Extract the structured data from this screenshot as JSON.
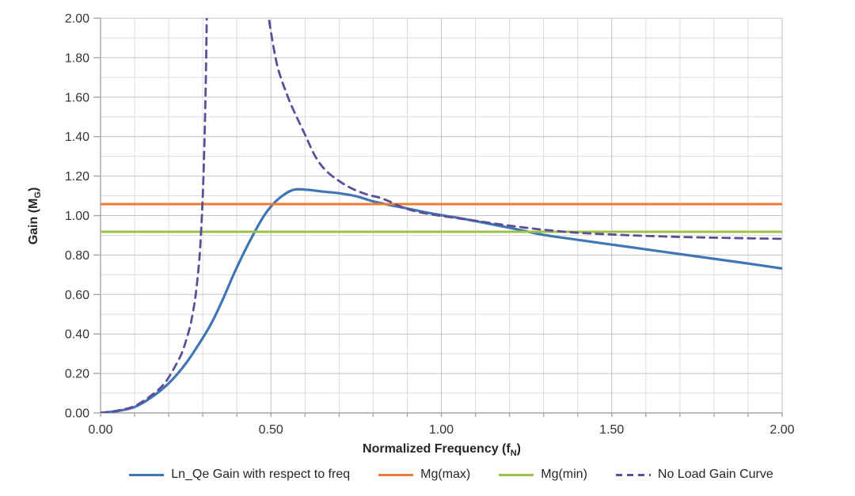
{
  "chart_data": {
    "type": "line",
    "title": "",
    "xlabel_parts": {
      "pre": "Normalized Frequency (f",
      "sub": "N",
      "post": ")"
    },
    "ylabel_parts": {
      "pre": "Gain (M",
      "sub": "G",
      "post": ")"
    },
    "xlim": [
      0,
      2
    ],
    "ylim": [
      0,
      2
    ],
    "x_tick_step": 0.5,
    "y_tick_step": 0.2,
    "minor_grid_step": 0.1,
    "grid": true,
    "legend_position": "bottom",
    "x_tick_labels": [
      "0.00",
      "0.50",
      "1.00",
      "1.50",
      "2.00"
    ],
    "y_tick_labels": [
      "0.00",
      "0.20",
      "0.40",
      "0.60",
      "0.80",
      "1.00",
      "1.20",
      "1.40",
      "1.60",
      "1.80",
      "2.00"
    ],
    "style": {
      "grid_minor_color": "#dcdcdc",
      "grid_major_color": "#c2c2c2",
      "axis_color": "#a6a6a6",
      "tick_label_color": "#333333",
      "background": "#ffffff"
    },
    "series": [
      {
        "name": "Ln_Qe Gain with respect to freq",
        "color": "#4076B4",
        "style": "solid",
        "width": 3.2,
        "peak": {
          "x": 0.57,
          "y": 1.13
        },
        "segments": [
          [
            [
              0,
              0
            ],
            [
              0.05,
              0.01
            ],
            [
              0.1,
              0.03
            ],
            [
              0.15,
              0.08
            ],
            [
              0.2,
              0.15
            ],
            [
              0.25,
              0.25
            ],
            [
              0.3,
              0.38
            ],
            [
              0.33,
              0.47
            ],
            [
              0.36,
              0.58
            ],
            [
              0.39,
              0.7
            ],
            [
              0.42,
              0.81
            ],
            [
              0.45,
              0.91
            ],
            [
              0.48,
              1.0
            ],
            [
              0.51,
              1.065
            ],
            [
              0.54,
              1.108
            ],
            [
              0.57,
              1.132
            ],
            [
              0.61,
              1.13
            ],
            [
              0.65,
              1.122
            ],
            [
              0.7,
              1.113
            ],
            [
              0.75,
              1.098
            ],
            [
              0.8,
              1.072
            ],
            [
              0.85,
              1.053
            ],
            [
              0.9,
              1.036
            ],
            [
              0.95,
              1.018
            ],
            [
              1.0,
              1.002
            ],
            [
              1.05,
              0.988
            ],
            [
              1.1,
              0.972
            ],
            [
              1.15,
              0.955
            ],
            [
              1.2,
              0.938
            ],
            [
              1.25,
              0.92
            ],
            [
              1.3,
              0.902
            ],
            [
              1.4,
              0.877
            ],
            [
              1.5,
              0.853
            ],
            [
              1.6,
              0.829
            ],
            [
              1.7,
              0.805
            ],
            [
              1.8,
              0.781
            ],
            [
              1.9,
              0.757
            ],
            [
              2.0,
              0.732
            ]
          ]
        ]
      },
      {
        "name": "Mg(max)",
        "color": "#ED7D31",
        "style": "solid",
        "width": 3,
        "value": 1.06,
        "segments": [
          [
            [
              0,
              1.058
            ],
            [
              2,
              1.058
            ]
          ]
        ]
      },
      {
        "name": "Mg(min)",
        "color": "#9BC348",
        "style": "solid",
        "width": 3,
        "value": 0.92,
        "segments": [
          [
            [
              0,
              0.918
            ],
            [
              2,
              0.918
            ]
          ]
        ]
      },
      {
        "name": "No Load Gain Curve",
        "color": "#5F4E96",
        "style": "dashed",
        "width": 2.8,
        "asymptote_x": 0.31,
        "segments": [
          [
            [
              0,
              0
            ],
            [
              0.05,
              0.012
            ],
            [
              0.1,
              0.035
            ],
            [
              0.15,
              0.09
            ],
            [
              0.18,
              0.135
            ],
            [
              0.2,
              0.18
            ],
            [
              0.22,
              0.24
            ],
            [
              0.24,
              0.31
            ],
            [
              0.26,
              0.42
            ],
            [
              0.27,
              0.5
            ],
            [
              0.28,
              0.61
            ],
            [
              0.29,
              0.78
            ],
            [
              0.295,
              0.92
            ],
            [
              0.3,
              1.1
            ],
            [
              0.305,
              1.38
            ],
            [
              0.309,
              1.7
            ],
            [
              0.312,
              2.05
            ]
          ],
          [
            [
              0.49,
              2.05
            ],
            [
              0.5,
              1.93
            ],
            [
              0.52,
              1.75
            ],
            [
              0.55,
              1.6
            ],
            [
              0.57,
              1.52
            ],
            [
              0.6,
              1.41
            ],
            [
              0.63,
              1.3
            ],
            [
              0.66,
              1.23
            ],
            [
              0.7,
              1.175
            ],
            [
              0.74,
              1.135
            ],
            [
              0.78,
              1.108
            ],
            [
              0.82,
              1.09
            ],
            [
              0.85,
              1.07
            ],
            [
              0.88,
              1.046
            ],
            [
              0.91,
              1.028
            ],
            [
              0.95,
              1.012
            ],
            [
              1.0,
              0.998
            ],
            [
              1.05,
              0.986
            ],
            [
              1.1,
              0.974
            ],
            [
              1.15,
              0.961
            ],
            [
              1.2,
              0.949
            ],
            [
              1.25,
              0.938
            ],
            [
              1.3,
              0.928
            ],
            [
              1.35,
              0.92
            ],
            [
              1.4,
              0.913
            ],
            [
              1.5,
              0.904
            ],
            [
              1.6,
              0.897
            ],
            [
              1.7,
              0.892
            ],
            [
              1.8,
              0.888
            ],
            [
              1.9,
              0.885
            ],
            [
              2.0,
              0.882
            ]
          ]
        ]
      }
    ]
  }
}
